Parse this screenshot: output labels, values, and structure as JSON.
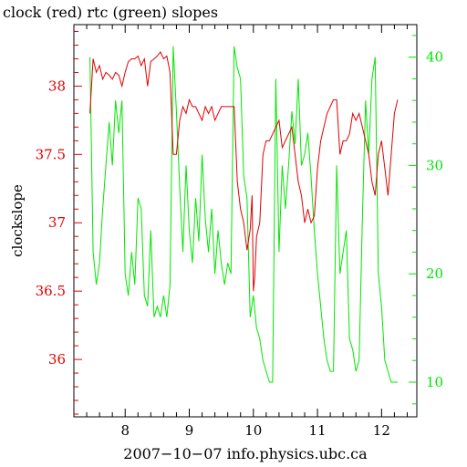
{
  "chart_data": {
    "type": "line",
    "title": "clock (red) rtc (green) slopes",
    "xlabel": "2007−10−07 info.physics.ubc.ca",
    "ylabel": "clockslope",
    "xlim": [
      7.2,
      12.55
    ],
    "ylim_left": [
      35.58,
      38.45
    ],
    "ylim_right": [
      6.8,
      43.0
    ],
    "x_ticks": [
      8,
      9,
      10,
      11,
      12
    ],
    "x_tick_labels": [
      "8",
      "9",
      "10",
      "11",
      "12"
    ],
    "y_left_ticks": [
      36,
      36.5,
      37,
      37.5,
      38
    ],
    "y_left_tick_labels": [
      "36",
      "36.5",
      "37",
      "37.5",
      "38"
    ],
    "y_right_ticks": [
      10,
      20,
      30,
      40
    ],
    "y_right_tick_labels": [
      "10",
      "20",
      "30",
      "40"
    ],
    "grid": false,
    "series": [
      {
        "name": "clock",
        "axis": "left",
        "color": "#e00000",
        "x": [
          7.45,
          7.5,
          7.55,
          7.6,
          7.65,
          7.7,
          7.75,
          7.8,
          7.85,
          7.9,
          7.95,
          8.0,
          8.05,
          8.1,
          8.15,
          8.2,
          8.25,
          8.3,
          8.35,
          8.4,
          8.45,
          8.5,
          8.55,
          8.6,
          8.65,
          8.7,
          8.75,
          8.8,
          8.85,
          8.9,
          8.95,
          9.0,
          9.05,
          9.1,
          9.15,
          9.2,
          9.25,
          9.3,
          9.35,
          9.4,
          9.45,
          9.5,
          9.55,
          9.6,
          9.65,
          9.7,
          9.75,
          9.8,
          9.85,
          9.9,
          9.95,
          9.98,
          10.0,
          10.02,
          10.05,
          10.1,
          10.15,
          10.2,
          10.25,
          10.3,
          10.35,
          10.4,
          10.45,
          10.5,
          10.55,
          10.6,
          10.65,
          10.7,
          10.75,
          10.8,
          10.85,
          10.9,
          10.95,
          11.0,
          11.05,
          11.1,
          11.15,
          11.2,
          11.25,
          11.3,
          11.35,
          11.4,
          11.45,
          11.5,
          11.55,
          11.6,
          11.65,
          11.7,
          11.75,
          11.8,
          11.85,
          11.9,
          11.95,
          12.0,
          12.05,
          12.1,
          12.15,
          12.2,
          12.25
        ],
        "values": [
          37.8,
          38.2,
          38.1,
          38.15,
          38.05,
          38.1,
          38.08,
          38.05,
          38.1,
          38.08,
          38.0,
          38.1,
          38.18,
          38.2,
          38.2,
          38.22,
          38.15,
          38.2,
          38.0,
          38.18,
          38.2,
          38.22,
          38.25,
          38.2,
          38.22,
          38.1,
          37.5,
          37.5,
          37.75,
          37.85,
          37.8,
          37.9,
          37.85,
          37.85,
          37.8,
          37.75,
          37.85,
          37.8,
          37.85,
          37.75,
          37.8,
          37.85,
          37.85,
          37.85,
          37.85,
          37.85,
          37.3,
          37.1,
          37.0,
          36.8,
          36.95,
          37.2,
          36.5,
          36.6,
          36.9,
          37.0,
          37.5,
          37.6,
          37.6,
          37.65,
          37.7,
          37.75,
          37.55,
          37.6,
          37.65,
          37.7,
          37.5,
          37.3,
          37.2,
          37.0,
          37.1,
          37.0,
          37.05,
          37.4,
          37.6,
          37.7,
          37.8,
          37.85,
          37.9,
          37.9,
          37.5,
          37.6,
          37.6,
          37.65,
          37.8,
          37.75,
          37.8,
          37.7,
          37.6,
          37.5,
          37.3,
          37.2,
          37.5,
          37.6,
          37.4,
          37.2,
          37.5,
          37.8,
          37.9
        ]
      },
      {
        "name": "rtc",
        "axis": "right",
        "color": "#00e600",
        "x": [
          7.45,
          7.5,
          7.55,
          7.6,
          7.65,
          7.7,
          7.75,
          7.8,
          7.85,
          7.9,
          7.95,
          8.0,
          8.05,
          8.1,
          8.15,
          8.2,
          8.25,
          8.3,
          8.35,
          8.4,
          8.45,
          8.5,
          8.55,
          8.6,
          8.65,
          8.7,
          8.75,
          8.8,
          8.85,
          8.9,
          8.95,
          9.0,
          9.05,
          9.1,
          9.15,
          9.2,
          9.25,
          9.3,
          9.35,
          9.4,
          9.45,
          9.5,
          9.55,
          9.6,
          9.65,
          9.7,
          9.75,
          9.8,
          9.85,
          9.9,
          9.95,
          10.0,
          10.05,
          10.1,
          10.15,
          10.2,
          10.25,
          10.3,
          10.35,
          10.4,
          10.45,
          10.5,
          10.55,
          10.6,
          10.65,
          10.7,
          10.75,
          10.8,
          10.85,
          10.9,
          10.95,
          11.0,
          11.05,
          11.1,
          11.15,
          11.2,
          11.25,
          11.3,
          11.35,
          11.4,
          11.45,
          11.5,
          11.55,
          11.6,
          11.65,
          11.7,
          11.75,
          11.8,
          11.85,
          11.9,
          11.95,
          12.0,
          12.05,
          12.1,
          12.15,
          12.2,
          12.25
        ],
        "values": [
          40,
          22,
          19,
          21,
          26,
          30,
          34,
          30,
          36,
          33,
          36,
          20,
          18,
          22,
          19,
          27,
          26,
          18,
          17,
          24,
          16,
          17,
          16,
          18,
          16,
          19,
          41,
          35,
          28,
          22,
          30,
          24,
          21,
          27,
          23,
          31,
          25,
          22,
          26,
          20,
          24,
          21,
          19,
          21,
          20,
          41,
          39,
          38,
          29,
          27,
          16,
          18,
          15,
          14,
          12,
          11,
          10,
          10,
          38,
          22,
          30,
          26,
          30,
          35,
          32,
          38,
          30,
          31,
          33,
          29,
          24,
          20,
          17,
          14,
          12,
          11,
          11,
          30,
          20,
          22,
          24,
          14,
          13,
          11,
          12,
          25,
          36,
          31,
          38,
          40,
          20,
          17,
          12,
          11,
          10,
          10,
          10
        ]
      }
    ]
  }
}
